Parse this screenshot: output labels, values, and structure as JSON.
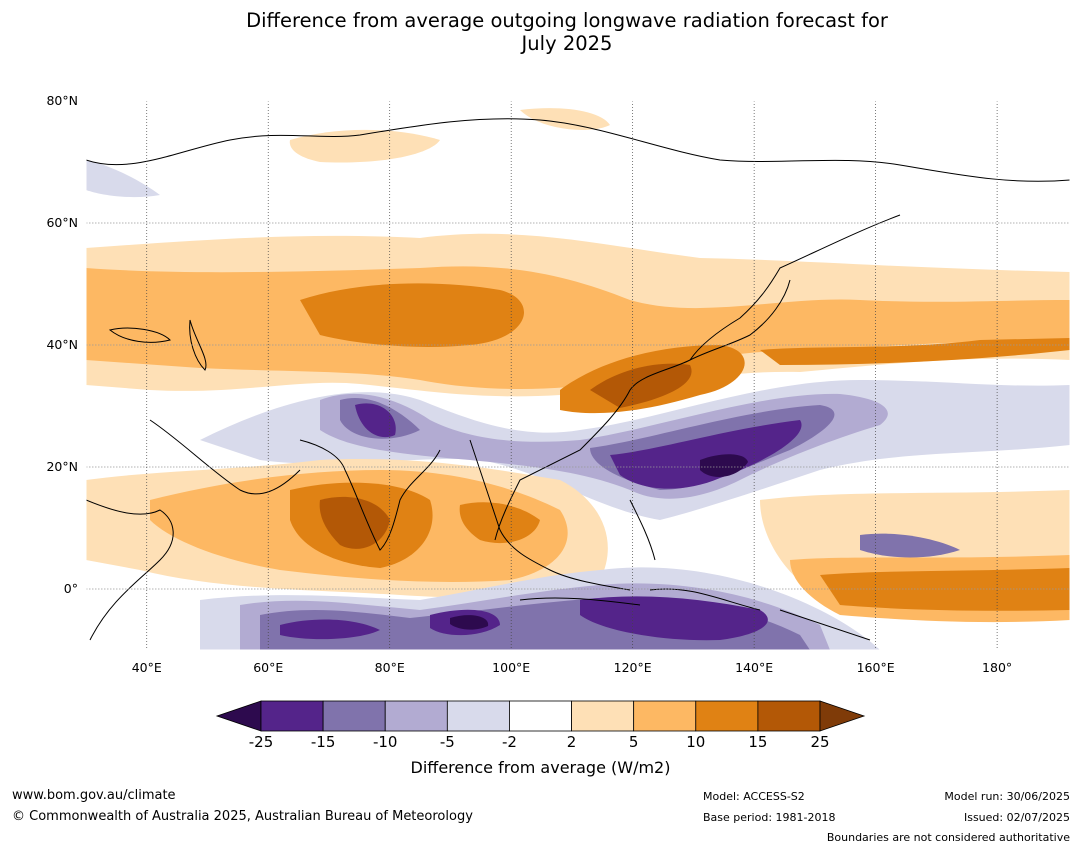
{
  "title_line1": "Difference from average outgoing longwave radiation forecast for",
  "title_line2": "July 2025",
  "map": {
    "lat_labels": [
      "80°N",
      "60°N",
      "40°N",
      "20°N",
      "0°"
    ],
    "lat_values": [
      80,
      60,
      40,
      20,
      0
    ],
    "lon_labels": [
      "40°E",
      "60°E",
      "80°E",
      "100°E",
      "120°E",
      "140°E",
      "160°E",
      "180°"
    ],
    "lon_values": [
      40,
      60,
      80,
      100,
      120,
      140,
      160,
      180
    ],
    "extent": {
      "lon_min": 30,
      "lon_max": 192,
      "lat_min": -10,
      "lat_max": 80
    }
  },
  "colorbar": {
    "ticks": [
      "-25",
      "-15",
      "-10",
      "-5",
      "-2",
      "2",
      "5",
      "10",
      "15",
      "25"
    ],
    "colors": [
      "#2d0a4e",
      "#54248a",
      "#8073ac",
      "#b2abd2",
      "#d8daeb",
      "#ffffff",
      "#fee0b6",
      "#fdb863",
      "#e08214",
      "#b35806",
      "#7f3b08"
    ],
    "title": "Difference from average (W/m2)"
  },
  "footer": {
    "url": "www.bom.gov.au/climate",
    "copyright": "© Commonwealth of Australia 2025, Australian Bureau of Meteorology",
    "model": "Model: ACCESS-S2",
    "base_period": "Base period: 1981-2018",
    "model_run": "Model run: 30/06/2025",
    "issued": "Issued: 02/07/2025",
    "disclaimer": "Boundaries are not considered authoritative"
  }
}
